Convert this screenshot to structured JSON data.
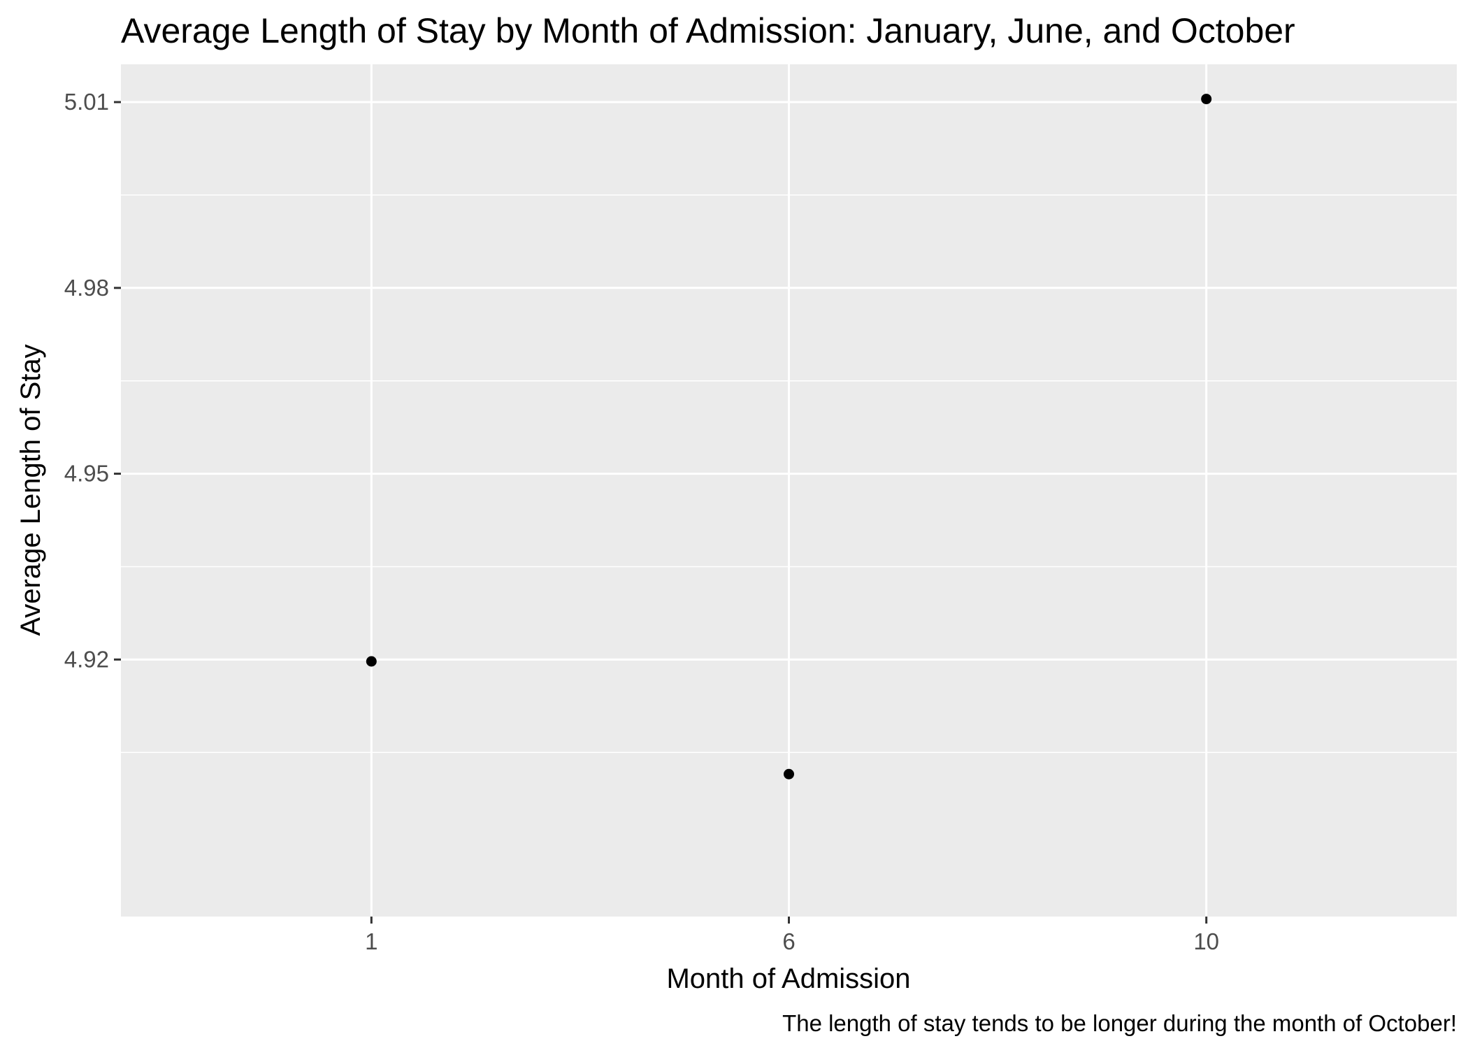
{
  "chart_data": {
    "type": "scatter",
    "title": "Average Length of Stay by Month of Admission: January, June, and October",
    "xlabel": "Month of Admission",
    "ylabel": "Average Length of Stay",
    "caption": "The length of stay tends to be longer during the month of October!",
    "x_categories": [
      "1",
      "6",
      "10"
    ],
    "points": [
      {
        "x": "1",
        "y": 4.9197
      },
      {
        "x": "6",
        "y": 4.9015
      },
      {
        "x": "10",
        "y": 5.0105
      }
    ],
    "y_ticks": [
      4.92,
      4.95,
      4.98,
      5.01
    ],
    "y_tick_labels": [
      "4.92",
      "4.95",
      "4.98",
      "5.01"
    ],
    "ylim": [
      4.8785,
      5.0161
    ],
    "grid": true,
    "panel_color": "#ebebeb",
    "point_color": "#000000"
  }
}
